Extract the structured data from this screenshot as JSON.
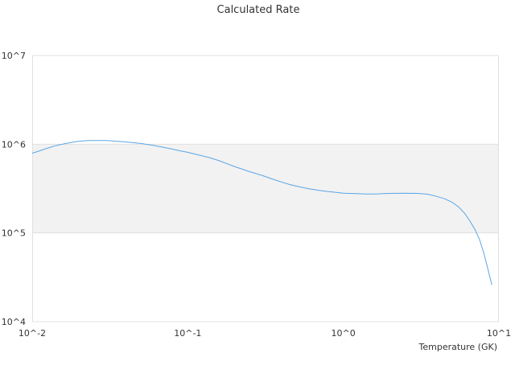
{
  "chart_data": {
    "type": "line",
    "title": "Calculated Rate",
    "xlabel": "Temperature (GK)",
    "ylabel": "",
    "x_scale": "log",
    "y_scale": "log",
    "xlim": [
      0.01,
      10
    ],
    "ylim": [
      10000,
      10000000
    ],
    "x_ticks": [
      0.01,
      0.1,
      1,
      10
    ],
    "x_tick_labels": [
      "10^-2",
      "10^-1",
      "10^0",
      "10^1"
    ],
    "y_ticks": [
      10000,
      100000,
      1000000,
      10000000
    ],
    "y_tick_labels": [
      "10^4",
      "10^5",
      "10^6",
      "10^7"
    ],
    "grid": true,
    "band": {
      "from": 100000,
      "to": 1000000
    },
    "colors": {
      "line": "#5aa5e6",
      "band": "#f2f2f2",
      "grid": "#e0e0e0"
    },
    "series": [
      {
        "name": "",
        "x": [
          0.01,
          0.012,
          0.014,
          0.016,
          0.018,
          0.02,
          0.023,
          0.026,
          0.03,
          0.035,
          0.04,
          0.045,
          0.05,
          0.06,
          0.07,
          0.08,
          0.09,
          0.1,
          0.12,
          0.14,
          0.16,
          0.18,
          0.2,
          0.25,
          0.3,
          0.35,
          0.4,
          0.45,
          0.5,
          0.6,
          0.7,
          0.8,
          0.9,
          1.0,
          1.2,
          1.4,
          1.6,
          1.8,
          2.0,
          2.5,
          3.0,
          3.5,
          4.0,
          4.5,
          5.0,
          5.5,
          6.0,
          6.5,
          7.0,
          7.5,
          8.0,
          8.5,
          9.0
        ],
        "y": [
          790000,
          880000,
          960000,
          1010000,
          1050000,
          1080000,
          1100000,
          1100000,
          1100000,
          1080000,
          1060000,
          1040000,
          1020000,
          970000,
          920000,
          880000,
          840000,
          810000,
          750000,
          700000,
          650000,
          600000,
          560000,
          490000,
          445000,
          405000,
          375000,
          352000,
          337000,
          315000,
          302000,
          292000,
          286000,
          281000,
          277000,
          275000,
          275000,
          277000,
          279000,
          280000,
          279000,
          273000,
          258000,
          242000,
          222000,
          197000,
          168000,
          137000,
          110000,
          85000,
          59000,
          39000,
          26000
        ]
      }
    ]
  }
}
